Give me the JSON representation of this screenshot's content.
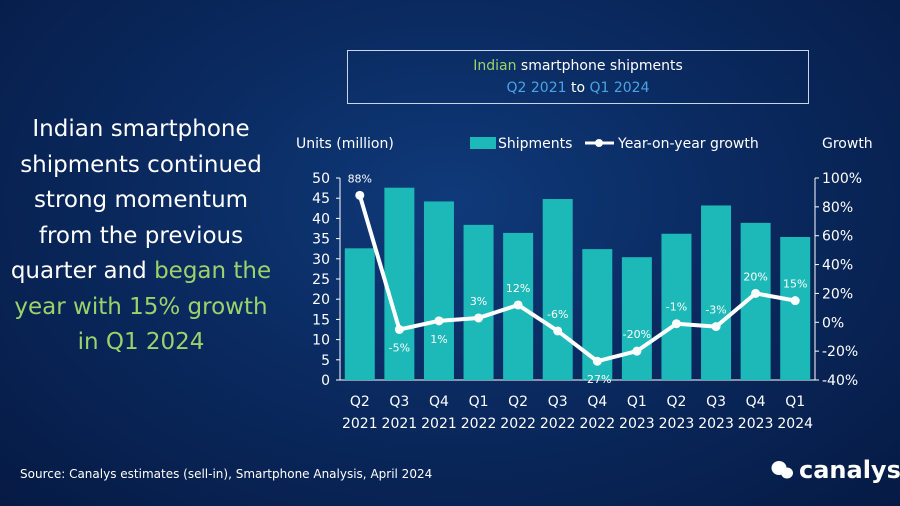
{
  "title": {
    "line1_accent": "Indian",
    "line1_rest": " smartphone shipments",
    "line2_from": "Q2 2021",
    "line2_to_word": " to ",
    "line2_to": "Q1 2024"
  },
  "headline": {
    "plain": "Indian smartphone shipments continued strong momentum from the previous quarter and ",
    "accent": "began the year with 15% growth in Q1 2024"
  },
  "source": "Source: Canalys estimates (sell-in), Smartphone Analysis, April 2024",
  "logo_text": "canalys",
  "colors": {
    "bar": "#1db8b8",
    "line": "#ffffff",
    "accent_green": "#9bd36a",
    "accent_blue": "#4aa3e6"
  },
  "chart_data": {
    "type": "bar",
    "left_axis_label": "Units (million)",
    "right_axis_label": "Growth",
    "categories": [
      [
        "Q2",
        "2021"
      ],
      [
        "Q3",
        "2021"
      ],
      [
        "Q4",
        "2021"
      ],
      [
        "Q1",
        "2022"
      ],
      [
        "Q2",
        "2022"
      ],
      [
        "Q3",
        "2022"
      ],
      [
        "Q4",
        "2022"
      ],
      [
        "Q1",
        "2023"
      ],
      [
        "Q2",
        "2023"
      ],
      [
        "Q3",
        "2023"
      ],
      [
        "Q4",
        "2023"
      ],
      [
        "Q1",
        "2024"
      ]
    ],
    "series": [
      {
        "name": "Shipments",
        "kind": "bar",
        "axis": "left",
        "values": [
          32.6,
          47.6,
          44.2,
          38.4,
          36.4,
          44.8,
          32.4,
          30.4,
          36.2,
          43.2,
          38.9,
          35.4
        ]
      },
      {
        "name": "Year-on-year growth",
        "kind": "line",
        "axis": "right",
        "values": [
          88,
          -5,
          1,
          3,
          12,
          -6,
          -27,
          -20,
          -1,
          -3,
          20,
          15
        ],
        "labels": [
          "88%",
          "-5%",
          "1%",
          "3%",
          "12%",
          "-6%",
          "-27%",
          "-20%",
          "-1%",
          "-3%",
          "20%",
          "15%"
        ]
      }
    ],
    "left_ylim": [
      0,
      50
    ],
    "left_ticks": [
      "0",
      "5",
      "10",
      "15",
      "20",
      "25",
      "30",
      "35",
      "40",
      "45",
      "50"
    ],
    "right_ylim": [
      -40,
      100
    ],
    "right_ticks": [
      "-40%",
      "-20%",
      "0%",
      "20%",
      "40%",
      "60%",
      "80%",
      "100%"
    ],
    "legend_position": "top",
    "grid": false
  }
}
